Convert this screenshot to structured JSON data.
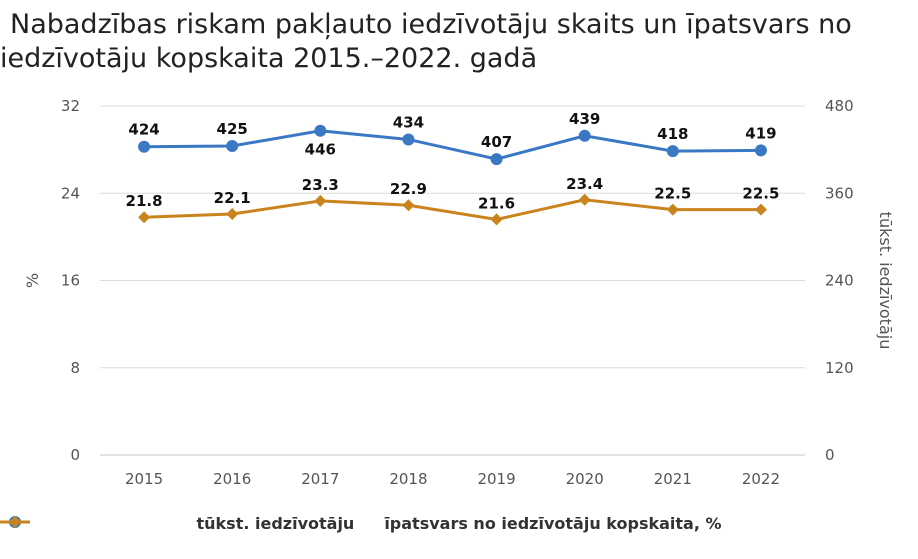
{
  "chart_data": {
    "type": "line",
    "title_line1": "Nabadzības riskam pakļauto iedzīvotāju skaits un īpatsvars no",
    "title_line2": "iedzīvotāju kopskaita 2015.–2022. gadā",
    "categories": [
      "2015",
      "2016",
      "2017",
      "2018",
      "2019",
      "2020",
      "2021",
      "2022"
    ],
    "ylabel_left": "%",
    "ylabel_right": "tūkst. iedzīvotāju",
    "y_left": {
      "min": 0,
      "max": 32,
      "ticks": [
        "0",
        "8",
        "16",
        "24",
        "32"
      ]
    },
    "y_right": {
      "min": 0,
      "max": 480,
      "ticks": [
        "0",
        "120",
        "240",
        "360",
        "480"
      ]
    },
    "grid": true,
    "legend_position": "bottom",
    "series": [
      {
        "name": "tūkst. iedzīvotāju",
        "axis": "right",
        "color": "#3a78c3",
        "marker": "circle",
        "values": [
          424,
          425,
          446,
          434,
          407,
          439,
          418,
          419
        ],
        "labels": [
          "424",
          "425",
          "446",
          "434",
          "407",
          "439",
          "418",
          "419"
        ]
      },
      {
        "name": "īpatsvars no iedzīvotāju kopskaita, %",
        "axis": "left",
        "color": "#c9841d",
        "marker": "diamond",
        "values": [
          21.8,
          22.1,
          23.3,
          22.9,
          21.6,
          23.4,
          22.5,
          22.5
        ],
        "labels": [
          "21.8",
          "22.1",
          "23.3",
          "22.9",
          "21.6",
          "23.4",
          "22.5",
          "22.5"
        ]
      }
    ]
  }
}
